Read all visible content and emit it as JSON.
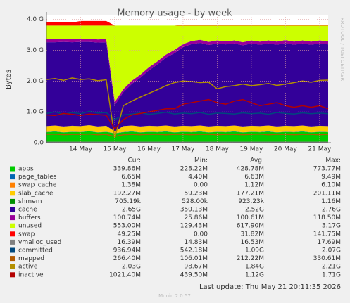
{
  "chart_data": {
    "type": "area",
    "title": "Memory usage - by week",
    "y_label": "Bytes",
    "side_text": "RRDTOOL / TOBI OETIKER",
    "last_update": "Last update: Thu May 21 20:11:35 2026",
    "footer": "Munin 2.0.57",
    "stat_headers": [
      "Cur:",
      "Min:",
      "Avg:",
      "Max:"
    ],
    "categories": [
      null,
      null,
      null,
      null,
      "14 May",
      null,
      null,
      null,
      "15 May",
      null,
      null,
      null,
      "16 May",
      null,
      null,
      null,
      "17 May",
      null,
      null,
      null,
      "18 May",
      null,
      null,
      null,
      "19 May",
      null,
      null,
      null,
      "20 May",
      null,
      null,
      null,
      "21 May",
      null
    ],
    "ylim": [
      0,
      4.15
    ],
    "yticks": [
      {
        "value": 0,
        "label": "0.0"
      },
      {
        "value": 1,
        "label": "1.0 G"
      },
      {
        "value": 2,
        "label": "2.0 G"
      },
      {
        "value": 3,
        "label": "3.0 G"
      },
      {
        "value": 4,
        "label": "4.0 G"
      }
    ],
    "grid": true,
    "series": [
      {
        "name": "apps",
        "color": "#00cc00",
        "draw": "area",
        "stats": [
          "339.86M",
          "228.22M",
          "428.78M",
          "773.77M"
        ],
        "values": [
          0.34,
          0.36,
          0.33,
          0.35,
          0.34,
          0.37,
          0.33,
          0.35,
          0.3,
          0.34,
          0.36,
          0.33,
          0.35,
          0.34,
          0.36,
          0.33,
          0.35,
          0.34,
          0.36,
          0.33,
          0.35,
          0.34,
          0.36,
          0.33,
          0.35,
          0.34,
          0.36,
          0.33,
          0.35,
          0.34,
          0.36,
          0.33,
          0.35,
          0.34
        ]
      },
      {
        "name": "page_tables",
        "color": "#0066b3",
        "draw": "area",
        "stats": [
          "6.65M",
          "4.40M",
          "6.63M",
          "9.49M"
        ],
        "values": [
          0.0066,
          0.0066,
          0.0066,
          0.0066,
          0.0066,
          0.0066,
          0.0066,
          0.0066,
          0.0066,
          0.0066,
          0.0066,
          0.0066,
          0.0066,
          0.0066,
          0.0066,
          0.0066,
          0.0066,
          0.0066,
          0.0066,
          0.0066,
          0.0066,
          0.0066,
          0.0066,
          0.0066,
          0.0066,
          0.0066,
          0.0066,
          0.0066,
          0.0066,
          0.0066,
          0.0066,
          0.0066,
          0.0066,
          0.0066
        ]
      },
      {
        "name": "swap_cache",
        "color": "#ff8000",
        "draw": "area",
        "stats": [
          "1.38M",
          "0.00",
          "1.12M",
          "6.10M"
        ],
        "values": [
          0.0014,
          0.0014,
          0.0014,
          0.0014,
          0.0014,
          0.0014,
          0.0014,
          0.0014,
          0.0014,
          0.0014,
          0.0014,
          0.0014,
          0.0014,
          0.0014,
          0.0014,
          0.0014,
          0.0014,
          0.0014,
          0.0014,
          0.0014,
          0.0014,
          0.0014,
          0.0014,
          0.0014,
          0.0014,
          0.0014,
          0.0014,
          0.0014,
          0.0014,
          0.0014,
          0.0014,
          0.0014,
          0.0014,
          0.0014
        ]
      },
      {
        "name": "slab_cache",
        "color": "#ffcc00",
        "draw": "area",
        "stats": [
          "192.27M",
          "59.23M",
          "177.21M",
          "201.11M"
        ],
        "values": [
          0.19,
          0.19,
          0.19,
          0.19,
          0.19,
          0.19,
          0.19,
          0.19,
          0.06,
          0.19,
          0.19,
          0.19,
          0.19,
          0.19,
          0.19,
          0.19,
          0.19,
          0.19,
          0.19,
          0.19,
          0.19,
          0.19,
          0.19,
          0.19,
          0.19,
          0.19,
          0.19,
          0.19,
          0.19,
          0.19,
          0.19,
          0.19,
          0.19,
          0.19
        ]
      },
      {
        "name": "shmem",
        "color": "#008f00",
        "draw": "area",
        "stats": [
          "705.19k",
          "528.00k",
          "923.23k",
          "1.16M"
        ],
        "values": [
          0.0007,
          0.0007,
          0.0007,
          0.0007,
          0.0007,
          0.0007,
          0.0007,
          0.0007,
          0.0007,
          0.0007,
          0.0007,
          0.0007,
          0.0007,
          0.0007,
          0.0007,
          0.0007,
          0.0007,
          0.0007,
          0.0007,
          0.0007,
          0.0007,
          0.0007,
          0.0007,
          0.0007,
          0.0007,
          0.0007,
          0.0007,
          0.0007,
          0.0007,
          0.0007,
          0.0007,
          0.0007,
          0.0007,
          0.0007
        ]
      },
      {
        "name": "cache",
        "color": "#330099",
        "draw": "area",
        "stats": [
          "2.65G",
          "350.13M",
          "2.52G",
          "2.76G"
        ],
        "values": [
          2.72,
          2.7,
          2.74,
          2.71,
          2.73,
          2.7,
          2.72,
          2.71,
          0.85,
          1.1,
          1.35,
          1.58,
          1.8,
          2.0,
          2.2,
          2.38,
          2.55,
          2.66,
          2.68,
          2.64,
          2.67,
          2.65,
          2.66,
          2.63,
          2.67,
          2.64,
          2.66,
          2.65,
          2.68,
          2.64,
          2.66,
          2.65,
          2.67,
          2.65
        ]
      },
      {
        "name": "buffers",
        "color": "#990099",
        "draw": "area",
        "stats": [
          "100.74M",
          "25.86M",
          "100.61M",
          "118.50M"
        ],
        "values": [
          0.1,
          0.1,
          0.1,
          0.1,
          0.1,
          0.1,
          0.1,
          0.1,
          0.1,
          0.1,
          0.1,
          0.1,
          0.1,
          0.1,
          0.1,
          0.1,
          0.1,
          0.1,
          0.1,
          0.1,
          0.1,
          0.1,
          0.1,
          0.1,
          0.1,
          0.1,
          0.1,
          0.1,
          0.1,
          0.1,
          0.1,
          0.1,
          0.1,
          0.1
        ]
      },
      {
        "name": "unused",
        "color": "#ccff00",
        "draw": "area",
        "stats": [
          "553.00M",
          "129.43M",
          "617.90M",
          "3.17G"
        ],
        "values": [
          0.44,
          0.44,
          0.43,
          0.44,
          0.43,
          0.43,
          0.45,
          0.44,
          2.48,
          2.06,
          1.79,
          1.59,
          1.35,
          1.16,
          0.94,
          0.79,
          0.6,
          0.5,
          0.46,
          0.53,
          0.48,
          0.51,
          0.48,
          0.54,
          0.48,
          0.52,
          0.48,
          0.52,
          0.47,
          0.52,
          0.48,
          0.52,
          0.48,
          0.51
        ]
      },
      {
        "name": "swap",
        "color": "#ff0000",
        "draw": "area",
        "stats": [
          "49.25M",
          "0.00",
          "31.82M",
          "141.75M"
        ],
        "values": [
          0.1,
          0.1,
          0.1,
          0.1,
          0.15,
          0.15,
          0.15,
          0.15,
          0,
          0,
          0,
          0,
          0,
          0,
          0,
          0,
          0.03,
          0.03,
          0.03,
          0.03,
          0.03,
          0.03,
          0.03,
          0.03,
          0.03,
          0.03,
          0.03,
          0.03,
          0.03,
          0.03,
          0.03,
          0.03,
          0.03,
          0.03
        ]
      },
      {
        "name": "vmalloc_used",
        "color": "#808080",
        "draw": "line",
        "stats": [
          "16.39M",
          "14.83M",
          "16.53M",
          "17.69M"
        ],
        "values": [
          0.016,
          0.016,
          0.016,
          0.016,
          0.016,
          0.016,
          0.016,
          0.016,
          0.016,
          0.016,
          0.016,
          0.016,
          0.016,
          0.016,
          0.016,
          0.016,
          0.016,
          0.016,
          0.016,
          0.016,
          0.016,
          0.016,
          0.016,
          0.016,
          0.016,
          0.016,
          0.016,
          0.016,
          0.016,
          0.016,
          0.016,
          0.016,
          0.016,
          0.016
        ]
      },
      {
        "name": "committed",
        "color": "#00487d",
        "draw": "line",
        "stats": [
          "936.94M",
          "542.18M",
          "1.09G",
          "2.07G"
        ],
        "values": [
          0.95,
          1.0,
          0.92,
          0.98,
          0.94,
          1.02,
          0.96,
          0.98,
          0.75,
          0.9,
          0.93,
          0.97,
          0.92,
          0.95,
          0.99,
          0.93,
          0.96,
          0.94,
          0.98,
          0.92,
          0.96,
          0.95,
          0.93,
          0.97,
          0.94,
          0.96,
          0.92,
          0.98,
          0.95,
          0.93,
          0.97,
          0.94,
          0.96,
          0.94
        ]
      },
      {
        "name": "mapped",
        "color": "#b35a00",
        "draw": "line",
        "stats": [
          "266.40M",
          "106.01M",
          "212.22M",
          "330.61M"
        ],
        "values": [
          0.27,
          0.28,
          0.26,
          0.27,
          0.27,
          0.28,
          0.26,
          0.27,
          0.2,
          0.26,
          0.27,
          0.26,
          0.27,
          0.27,
          0.26,
          0.27,
          0.27,
          0.26,
          0.27,
          0.27,
          0.26,
          0.27,
          0.27,
          0.26,
          0.27,
          0.28,
          0.26,
          0.27,
          0.27,
          0.26,
          0.27,
          0.27,
          0.26,
          0.27
        ]
      },
      {
        "name": "active",
        "color": "#b38f00",
        "draw": "line",
        "stats": [
          "2.03G",
          "98.67M",
          "1.84G",
          "2.21G"
        ],
        "values": [
          2.05,
          2.08,
          2.02,
          2.1,
          2.05,
          2.07,
          2.01,
          2.04,
          0.15,
          1.2,
          1.35,
          1.48,
          1.6,
          1.72,
          1.85,
          1.95,
          2.0,
          1.98,
          1.95,
          1.96,
          1.75,
          1.82,
          1.85,
          1.9,
          1.85,
          1.88,
          1.92,
          1.86,
          1.9,
          1.95,
          2.0,
          1.96,
          2.02,
          2.03
        ]
      },
      {
        "name": "inactive",
        "color": "#b30000",
        "draw": "line",
        "stats": [
          "1021.40M",
          "439.50M",
          "1.12G",
          "1.71G"
        ],
        "values": [
          0.9,
          0.88,
          0.95,
          0.92,
          0.88,
          0.93,
          0.91,
          0.89,
          0.45,
          0.75,
          0.9,
          0.95,
          1.0,
          1.05,
          1.1,
          1.1,
          1.25,
          1.3,
          1.35,
          1.4,
          1.3,
          1.25,
          1.35,
          1.4,
          1.3,
          1.2,
          1.25,
          1.3,
          1.2,
          1.15,
          1.2,
          1.15,
          1.2,
          1.1
        ]
      }
    ]
  }
}
